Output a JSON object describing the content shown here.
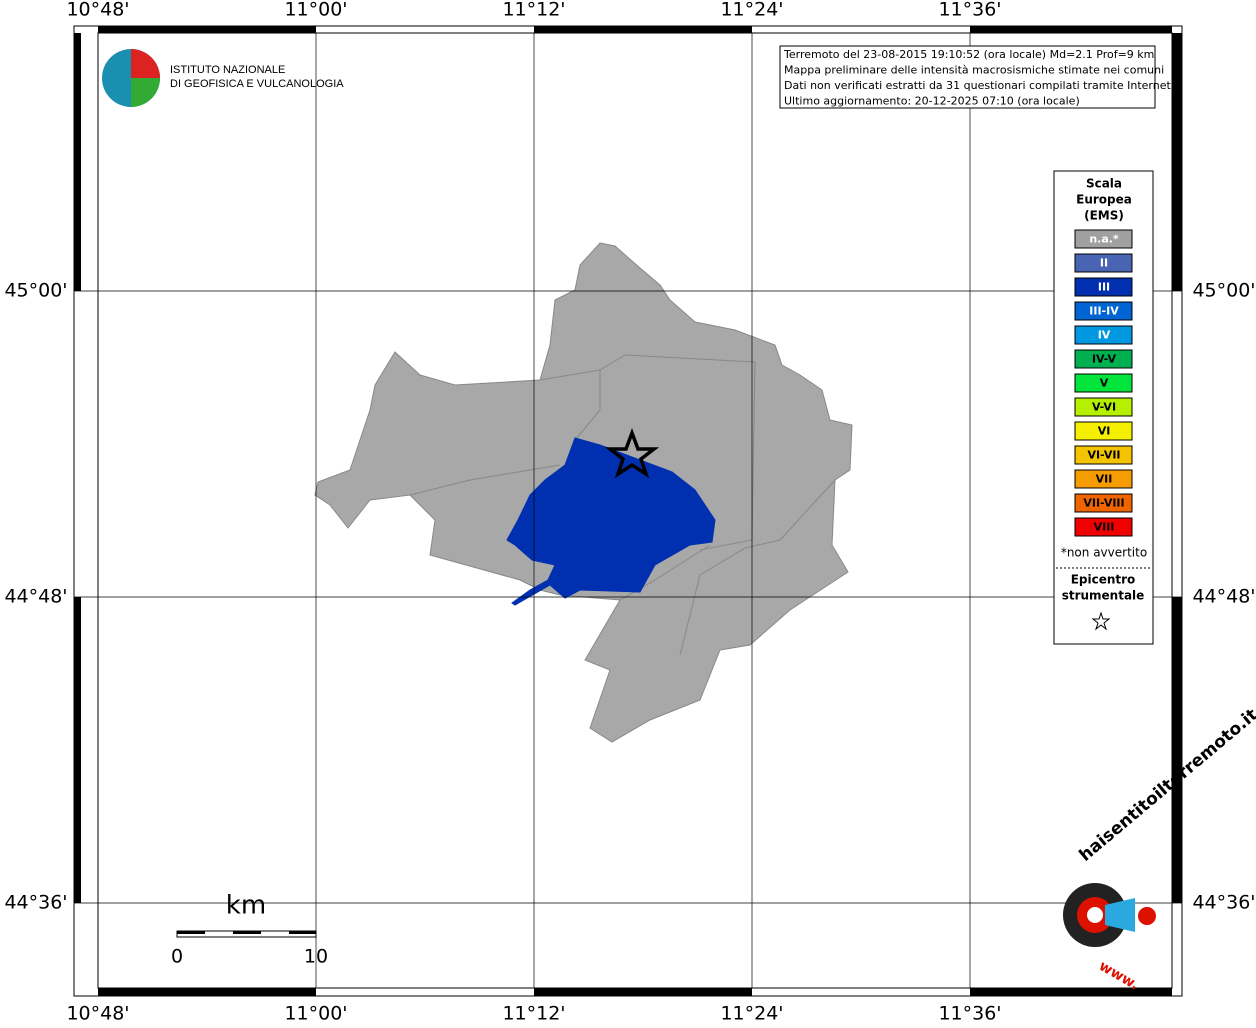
{
  "map": {
    "lon_labels": [
      "10°48'",
      "11°00'",
      "11°12'",
      "11°24'",
      "11°36'"
    ],
    "lat_labels": [
      "45°00'",
      "44°48'",
      "44°36'"
    ],
    "info": [
      "Terremoto del 23-08-2015 19:10:52 (ora locale) Md=2.1 Prof=9 km",
      "Mappa preliminare delle intensità macrosismiche stimate nei comuni",
      "Dati non verificati estratti da 31 questionari compilati tramite Internet.",
      "Ultimo aggiornamento: 20-12-2025 07:10 (ora locale)"
    ],
    "logo": [
      "ISTITUTO NAZIONALE",
      "DI GEOFISICA E VULCANOLOGIA"
    ],
    "legend": {
      "title": [
        "Scala",
        "Europea",
        "(EMS)"
      ],
      "items": [
        {
          "label": "n.a.*",
          "color": "#a0a0a0"
        },
        {
          "label": "II",
          "color": "#4a64b4"
        },
        {
          "label": "III",
          "color": "#0030b0"
        },
        {
          "label": "III-IV",
          "color": "#0064d2"
        },
        {
          "label": "IV",
          "color": "#0098e0"
        },
        {
          "label": "IV-V",
          "color": "#00b050"
        },
        {
          "label": "V",
          "color": "#00e43c"
        },
        {
          "label": "V-VI",
          "color": "#b4f000"
        },
        {
          "label": "VI",
          "color": "#f4f000"
        },
        {
          "label": "VI-VII",
          "color": "#f4c400"
        },
        {
          "label": "VII",
          "color": "#f49c00"
        },
        {
          "label": "VII-VIII",
          "color": "#f06400"
        },
        {
          "label": "VIII",
          "color": "#f00000"
        }
      ],
      "note": "*non avvertito",
      "epicenter": [
        "Epicentro",
        "strumentale"
      ]
    },
    "scale": {
      "unit": "km",
      "labels": [
        "0",
        "10"
      ]
    },
    "site_logo": [
      "haisentitoilterremoto.it",
      "www."
    ]
  }
}
